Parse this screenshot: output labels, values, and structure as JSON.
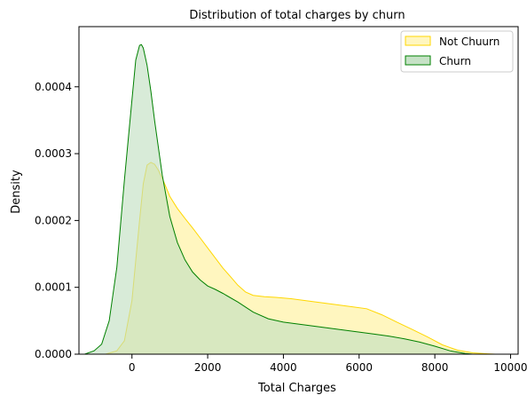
{
  "chart_data": {
    "type": "area",
    "title": "Distribution of total charges by churn",
    "xlabel": "Total Charges",
    "ylabel": "Density",
    "xlim": [
      -1400,
      10200
    ],
    "ylim": [
      0,
      0.00049
    ],
    "xticks": [
      0,
      2000,
      4000,
      6000,
      8000,
      10000
    ],
    "xtick_labels": [
      "0",
      "2000",
      "4000",
      "6000",
      "8000",
      "10000"
    ],
    "yticks": [
      0,
      0.0001,
      0.0002,
      0.0003,
      0.0004
    ],
    "ytick_labels": [
      "0.0000",
      "0.0001",
      "0.0002",
      "0.0003",
      "0.0004"
    ],
    "grid": false,
    "legend_position": "top-right",
    "series": [
      {
        "name": "Not Chuurn",
        "fill": "#fff6bf",
        "stroke": "#ffd700",
        "x": [
          -700,
          -400,
          -200,
          0,
          100,
          200,
          300,
          400,
          500,
          600,
          700,
          800,
          900,
          1000,
          1200,
          1400,
          1600,
          1800,
          2000,
          2200,
          2400,
          2600,
          2800,
          3000,
          3200,
          3500,
          3800,
          4200,
          4600,
          5000,
          5400,
          5800,
          6200,
          6600,
          7000,
          7400,
          7800,
          8200,
          8600,
          9000,
          9400,
          9600
        ],
        "y": [
          0,
          5e-06,
          2e-05,
          8e-05,
          0.00014,
          0.0002,
          0.000255,
          0.000283,
          0.000287,
          0.000284,
          0.000275,
          0.000263,
          0.00025,
          0.000236,
          0.000218,
          0.000203,
          0.000189,
          0.000174,
          0.000159,
          0.000144,
          0.000129,
          0.000116,
          0.000103,
          9.3e-05,
          8.8e-05,
          8.6e-05,
          8.5e-05,
          8.3e-05,
          8e-05,
          7.7e-05,
          7.4e-05,
          7.1e-05,
          6.8e-05,
          5.9e-05,
          4.8e-05,
          3.7e-05,
          2.6e-05,
          1.4e-05,
          6e-06,
          2e-06,
          5e-07,
          0
        ]
      },
      {
        "name": "Churn",
        "fill": "#c0dfc0",
        "stroke": "#008000",
        "x": [
          -1250,
          -1000,
          -800,
          -600,
          -400,
          -200,
          0,
          100,
          200,
          250,
          300,
          400,
          500,
          600,
          800,
          1000,
          1200,
          1400,
          1600,
          1800,
          2000,
          2200,
          2400,
          2800,
          3200,
          3600,
          4000,
          4400,
          4800,
          5200,
          5600,
          6000,
          6400,
          6800,
          7200,
          7600,
          8000,
          8400,
          8800,
          9000
        ],
        "y": [
          0,
          5e-06,
          1.5e-05,
          5e-05,
          0.00013,
          0.00026,
          0.00038,
          0.00044,
          0.000462,
          0.000463,
          0.000458,
          0.000432,
          0.000393,
          0.000349,
          0.000268,
          0.000206,
          0.000167,
          0.000141,
          0.000123,
          0.000111,
          0.000102,
          9.7e-05,
          9.1e-05,
          7.8e-05,
          6.3e-05,
          5.3e-05,
          4.8e-05,
          4.5e-05,
          4.2e-05,
          3.9e-05,
          3.6e-05,
          3.3e-05,
          3e-05,
          2.7e-05,
          2.3e-05,
          1.8e-05,
          1.2e-05,
          5e-06,
          1e-06,
          0
        ]
      }
    ]
  }
}
